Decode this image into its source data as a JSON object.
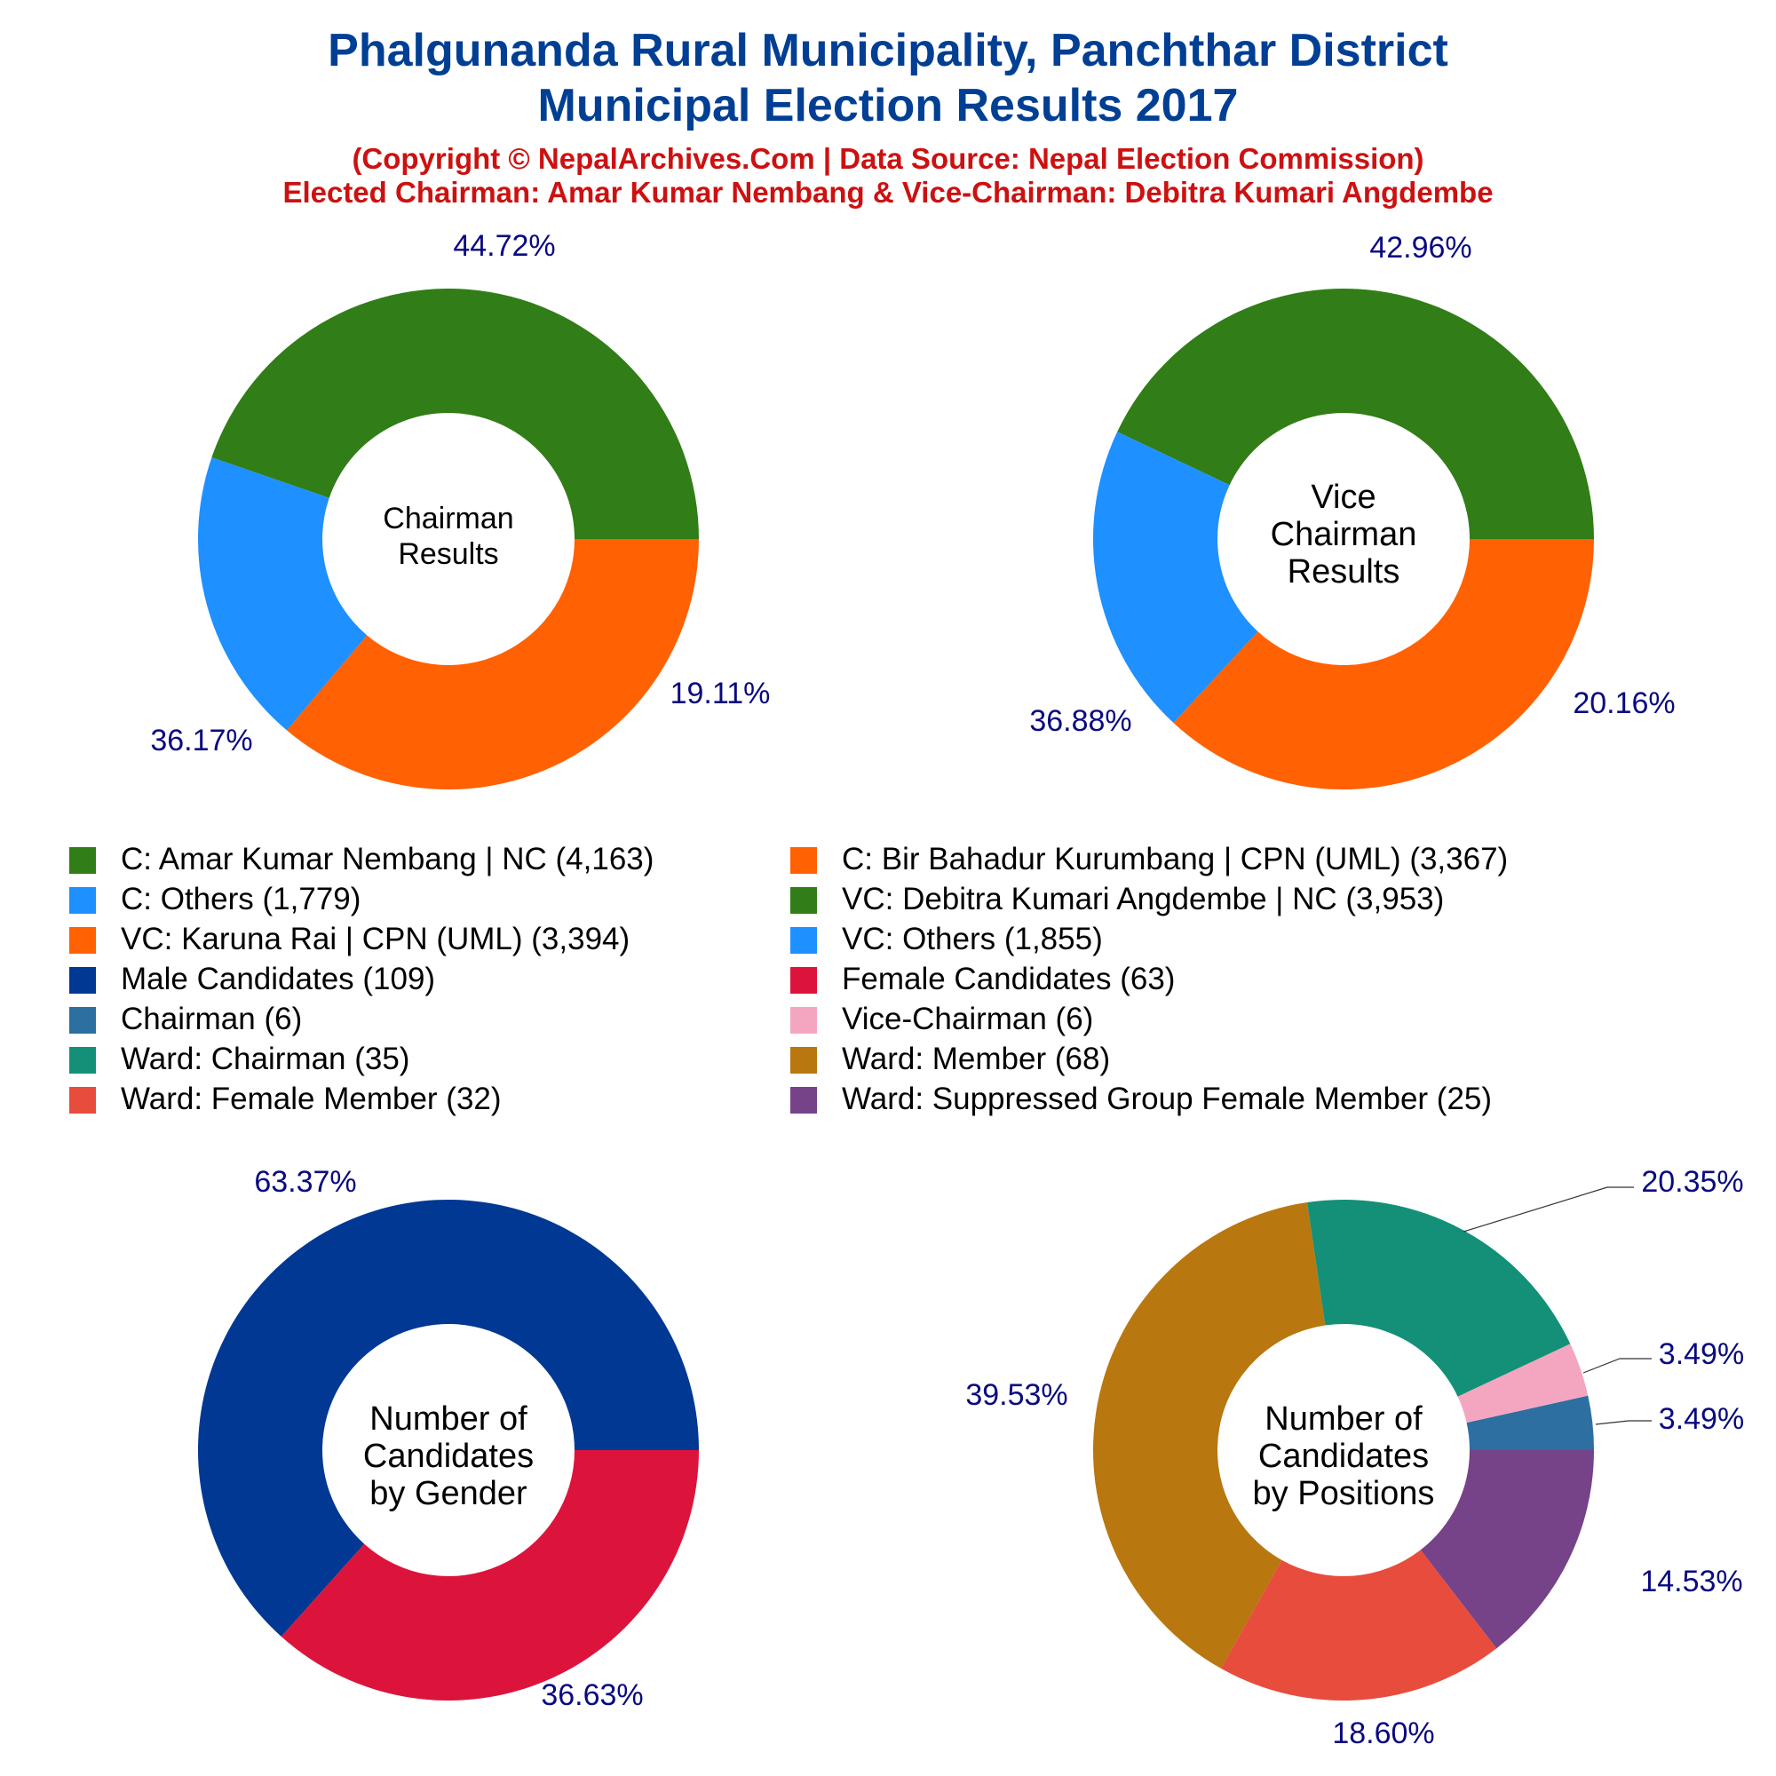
{
  "header": {
    "title_line1": "Phalgunanda Rural Municipality, Panchthar District",
    "title_line2": "Municipal Election Results 2017",
    "subtitle_line1": "(Copyright © NepalArchives.Com | Data Source: Nepal Election Commission)",
    "subtitle_line2": "Elected Chairman: Amar Kumar Nembang & Vice-Chairman: Debitra Kumari Angdembe"
  },
  "colors": {
    "title": "#003f94",
    "subtitle": "#cc1111",
    "pct_label": "#0a0a80"
  },
  "chart_data": [
    {
      "id": "chairman",
      "type": "pie",
      "center_label": [
        "Chairman",
        "Results"
      ],
      "slices": [
        {
          "label": "C: Amar Kumar Nembang | NC",
          "value": 4163,
          "percent_label": "44.72%",
          "color": "#317d17"
        },
        {
          "label": "C: Others",
          "value": 1779,
          "percent_label": "19.11%",
          "color": "#1e90ff"
        },
        {
          "label": "C: Bir Bahadur Kurumbang | CPN (UML)",
          "value": 3367,
          "percent_label": "36.17%",
          "color": "#ff6103"
        }
      ]
    },
    {
      "id": "vice-chairman",
      "type": "pie",
      "center_label": [
        "Vice",
        "Chairman",
        "Results"
      ],
      "slices": [
        {
          "label": "VC: Debitra Kumari Angdembe | NC",
          "value": 3953,
          "percent_label": "42.96%",
          "color": "#317d17"
        },
        {
          "label": "VC: Others",
          "value": 1855,
          "percent_label": "20.16%",
          "color": "#1e90ff"
        },
        {
          "label": "VC: Karuna Rai | CPN (UML)",
          "value": 3394,
          "percent_label": "36.88%",
          "color": "#ff6103"
        }
      ]
    },
    {
      "id": "gender",
      "type": "pie",
      "center_label": [
        "Number of",
        "Candidates",
        "by Gender"
      ],
      "slices": [
        {
          "label": "Male Candidates",
          "value": 109,
          "percent_label": "63.37%",
          "color": "#003893"
        },
        {
          "label": "Female Candidates",
          "value": 63,
          "percent_label": "36.63%",
          "color": "#dc143c"
        }
      ]
    },
    {
      "id": "positions",
      "type": "pie",
      "center_label": [
        "Number of",
        "Candidates",
        "by Positions"
      ],
      "slices": [
        {
          "label": "Chairman",
          "value": 6,
          "percent_label": "3.49%",
          "color": "#2c6fa0"
        },
        {
          "label": "Vice-Chairman",
          "value": 6,
          "percent_label": "3.49%",
          "color": "#f4a6c0"
        },
        {
          "label": "Ward: Chairman",
          "value": 35,
          "percent_label": "20.35%",
          "color": "#139077"
        },
        {
          "label": "Ward: Member",
          "value": 68,
          "percent_label": "39.53%",
          "color": "#b8770f"
        },
        {
          "label": "Ward: Female Member",
          "value": 32,
          "percent_label": "18.60%",
          "color": "#e84c3d"
        },
        {
          "label": "Ward: Suppressed Group Female Member",
          "value": 25,
          "percent_label": "14.53%",
          "color": "#764288"
        }
      ]
    }
  ],
  "legend": {
    "columns": [
      [
        {
          "label": "C: Amar Kumar Nembang | NC (4,163)",
          "color": "#317d17"
        },
        {
          "label": "C: Others (1,779)",
          "color": "#1e90ff"
        },
        {
          "label": "VC: Karuna Rai | CPN (UML) (3,394)",
          "color": "#ff6103"
        },
        {
          "label": "Male Candidates (109)",
          "color": "#003893"
        },
        {
          "label": "Chairman (6)",
          "color": "#2c6fa0"
        },
        {
          "label": "Ward: Chairman (35)",
          "color": "#139077"
        },
        {
          "label": "Ward: Female Member (32)",
          "color": "#e84c3d"
        }
      ],
      [
        {
          "label": "C: Bir Bahadur Kurumbang | CPN (UML) (3,367)",
          "color": "#ff6103"
        },
        {
          "label": "VC: Debitra Kumari Angdembe | NC (3,953)",
          "color": "#317d17"
        },
        {
          "label": "VC: Others (1,855)",
          "color": "#1e90ff"
        },
        {
          "label": "Female Candidates (63)",
          "color": "#dc143c"
        },
        {
          "label": "Vice-Chairman (6)",
          "color": "#f4a6c0"
        },
        {
          "label": "Ward: Member (68)",
          "color": "#b8770f"
        },
        {
          "label": "Ward: Suppressed Group Female Member (25)",
          "color": "#764288"
        }
      ]
    ]
  }
}
